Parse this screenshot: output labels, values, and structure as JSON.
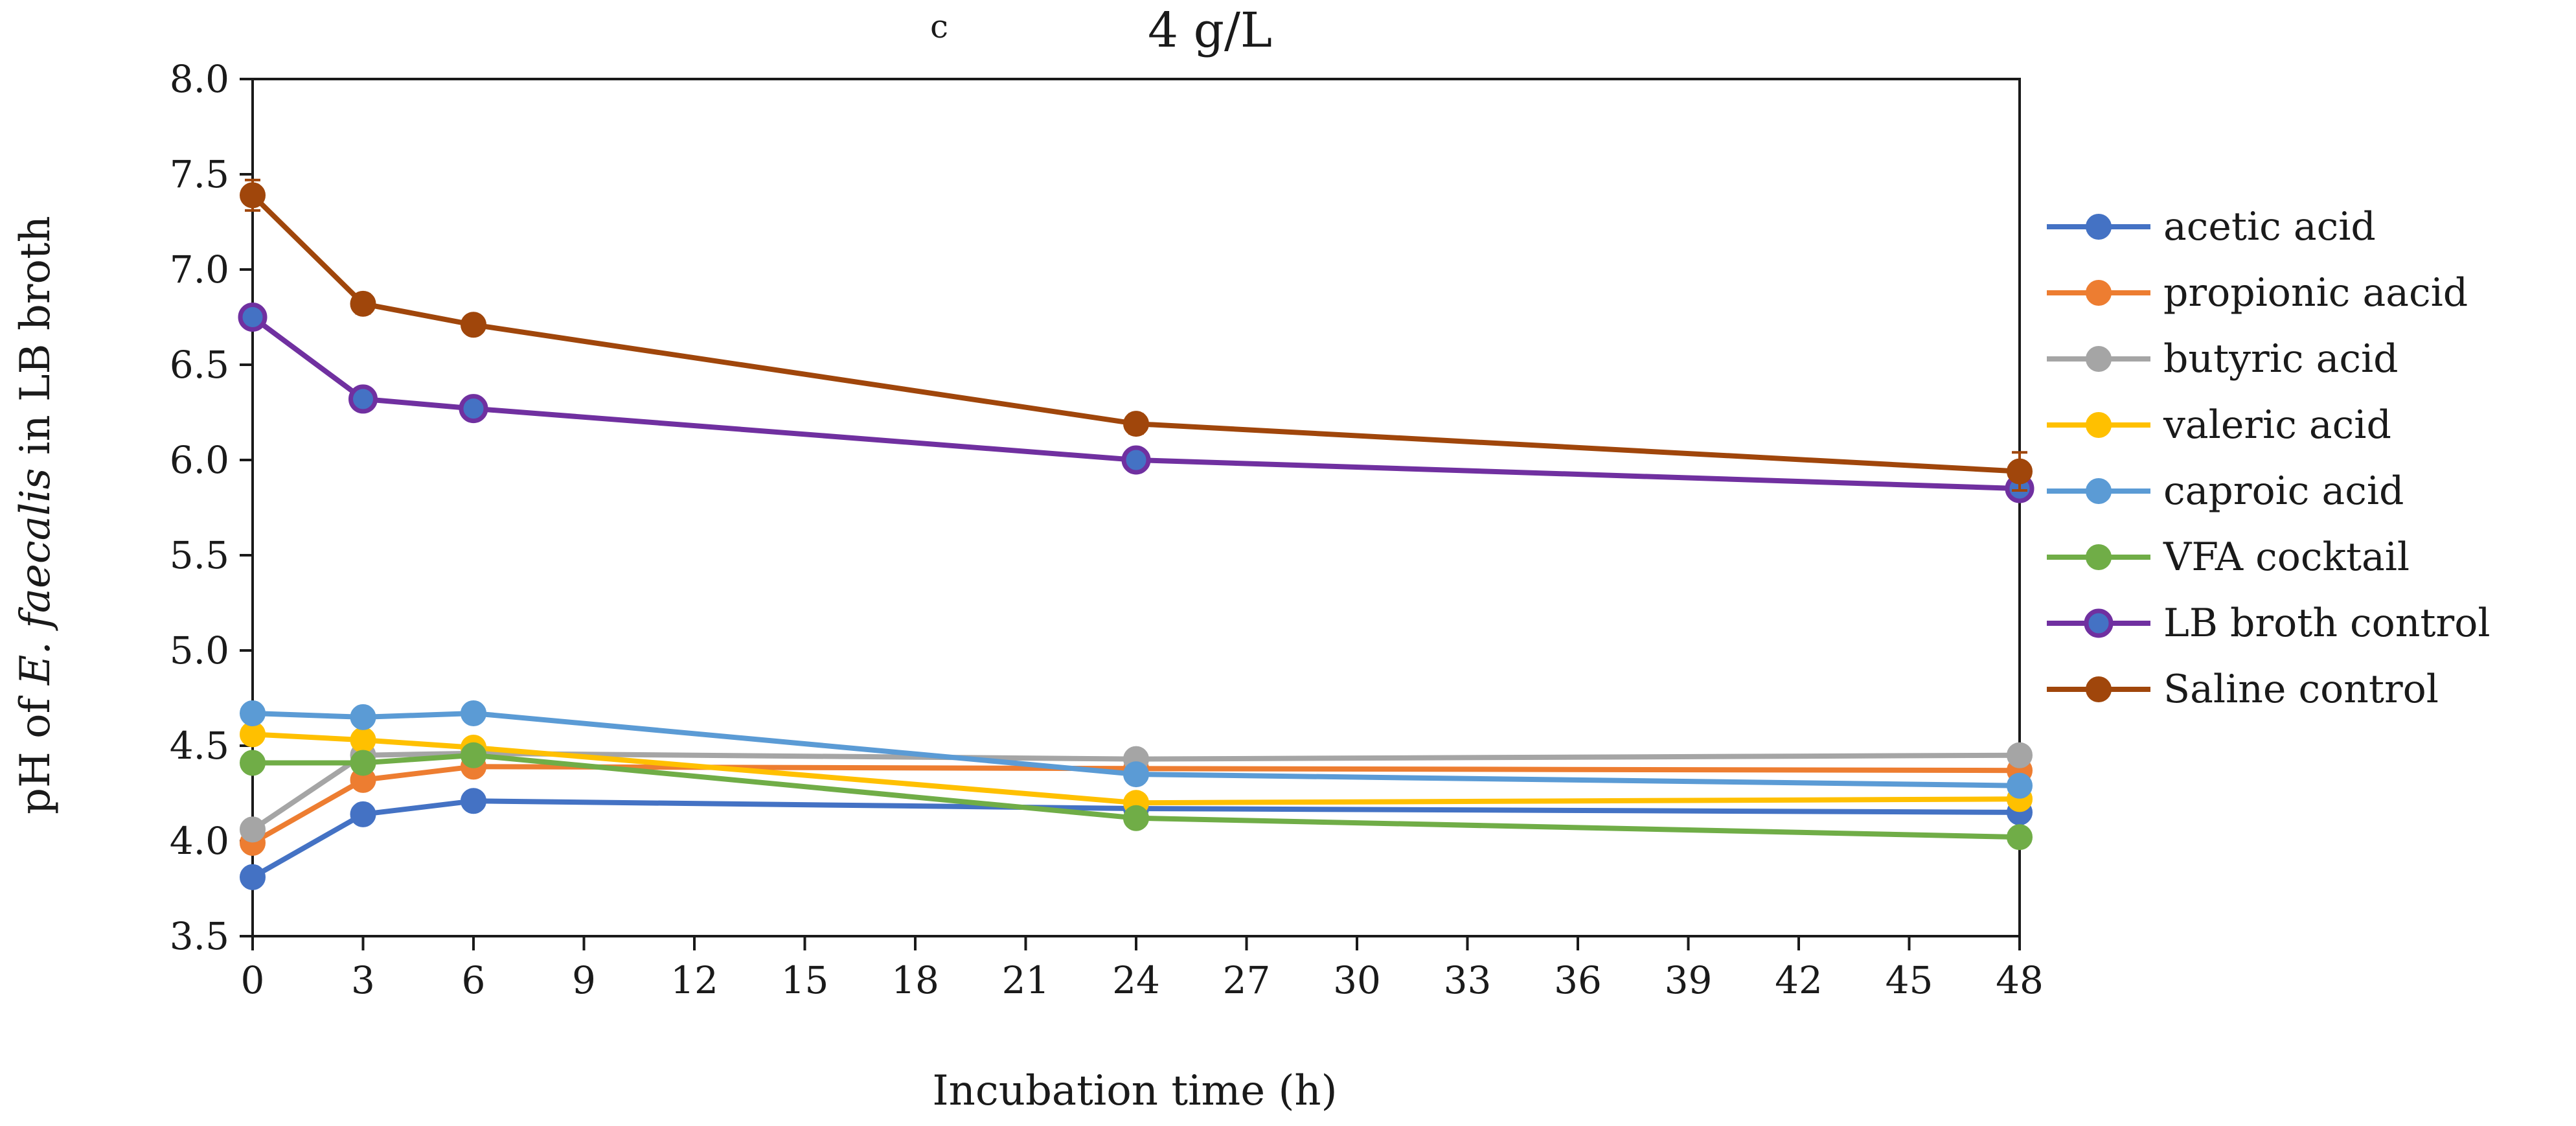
{
  "chart_data": {
    "type": "line",
    "panel_label": "c",
    "title": "4 g/L",
    "xlabel": "Incubation time (h)",
    "ylabel_parts": [
      "pH of ",
      "E. faecalis",
      " in LB broth"
    ],
    "xlim": [
      0,
      48
    ],
    "ylim": [
      3.5,
      8.0
    ],
    "xticks": [
      "0",
      "3",
      "6",
      "9",
      "12",
      "15",
      "18",
      "21",
      "24",
      "27",
      "30",
      "33",
      "36",
      "39",
      "42",
      "45",
      "48"
    ],
    "yticks": [
      "3.5",
      "4.0",
      "4.5",
      "5.0",
      "5.5",
      "6.0",
      "6.5",
      "7.0",
      "7.5",
      "8.0"
    ],
    "x": [
      0,
      3,
      6,
      24,
      48
    ],
    "legend_position": "right",
    "series": [
      {
        "name": "acetic acid",
        "color": "#4472C4",
        "values": [
          3.81,
          4.14,
          4.21,
          4.17,
          4.15
        ]
      },
      {
        "name": "propionic aacid",
        "color": "#ED7D31",
        "values": [
          3.99,
          4.32,
          4.39,
          4.38,
          4.37
        ]
      },
      {
        "name": "butyric acid",
        "color": "#A5A5A5",
        "values": [
          4.06,
          4.45,
          4.46,
          4.43,
          4.45
        ]
      },
      {
        "name": "valeric acid",
        "color": "#FFC000",
        "values": [
          4.56,
          4.53,
          4.49,
          4.2,
          4.22
        ]
      },
      {
        "name": "caproic acid",
        "color": "#5B9BD5",
        "values": [
          4.67,
          4.65,
          4.67,
          4.35,
          4.29
        ]
      },
      {
        "name": "VFA cocktail",
        "color": "#70AD47",
        "values": [
          4.41,
          4.41,
          4.45,
          4.12,
          4.02
        ]
      },
      {
        "name": "LB broth control",
        "color": "#7030A0",
        "marker_fill": "#4472C4",
        "values": [
          6.75,
          6.32,
          6.27,
          6.0,
          5.85
        ]
      },
      {
        "name": "Saline control",
        "color": "#A0460B",
        "values": [
          7.39,
          6.82,
          6.71,
          6.19,
          5.94
        ],
        "error_bars": [
          0.08,
          0.05,
          0.03,
          0.05,
          0.1
        ]
      }
    ]
  }
}
